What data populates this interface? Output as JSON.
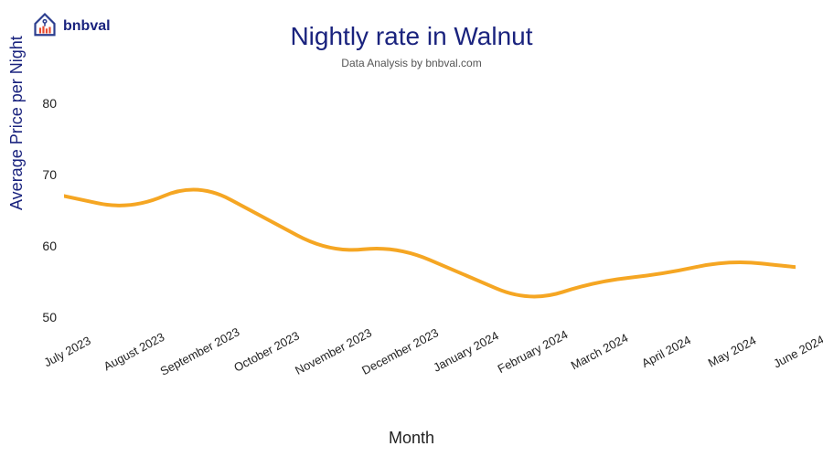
{
  "logo": {
    "text": "bnbval",
    "house_color": "#2c3e8f",
    "bars_color": "#e84a2e"
  },
  "title": "Nightly rate in Walnut",
  "subtitle": "Data Analysis by bnbval.com",
  "chart": {
    "type": "line",
    "x_label": "Month",
    "y_label": "Average Price per Night",
    "x_categories": [
      "July 2023",
      "August 2023",
      "September 2023",
      "October 2023",
      "November 2023",
      "December 2023",
      "January 2024",
      "February 2024",
      "March 2024",
      "April 2024",
      "May 2024",
      "June 2024"
    ],
    "values": [
      67,
      65,
      69,
      64,
      59,
      60,
      56,
      52,
      55,
      56,
      58,
      57
    ],
    "ylim": [
      47,
      83
    ],
    "yticks": [
      50,
      60,
      70,
      80
    ],
    "line_color": "#f5a623",
    "line_width": 4,
    "text_color": "#1a237e",
    "tick_color": "#222222",
    "background_color": "#ffffff",
    "title_fontsize": 28,
    "subtitle_fontsize": 12,
    "axis_label_fontsize": 18,
    "tick_fontsize": 14
  }
}
